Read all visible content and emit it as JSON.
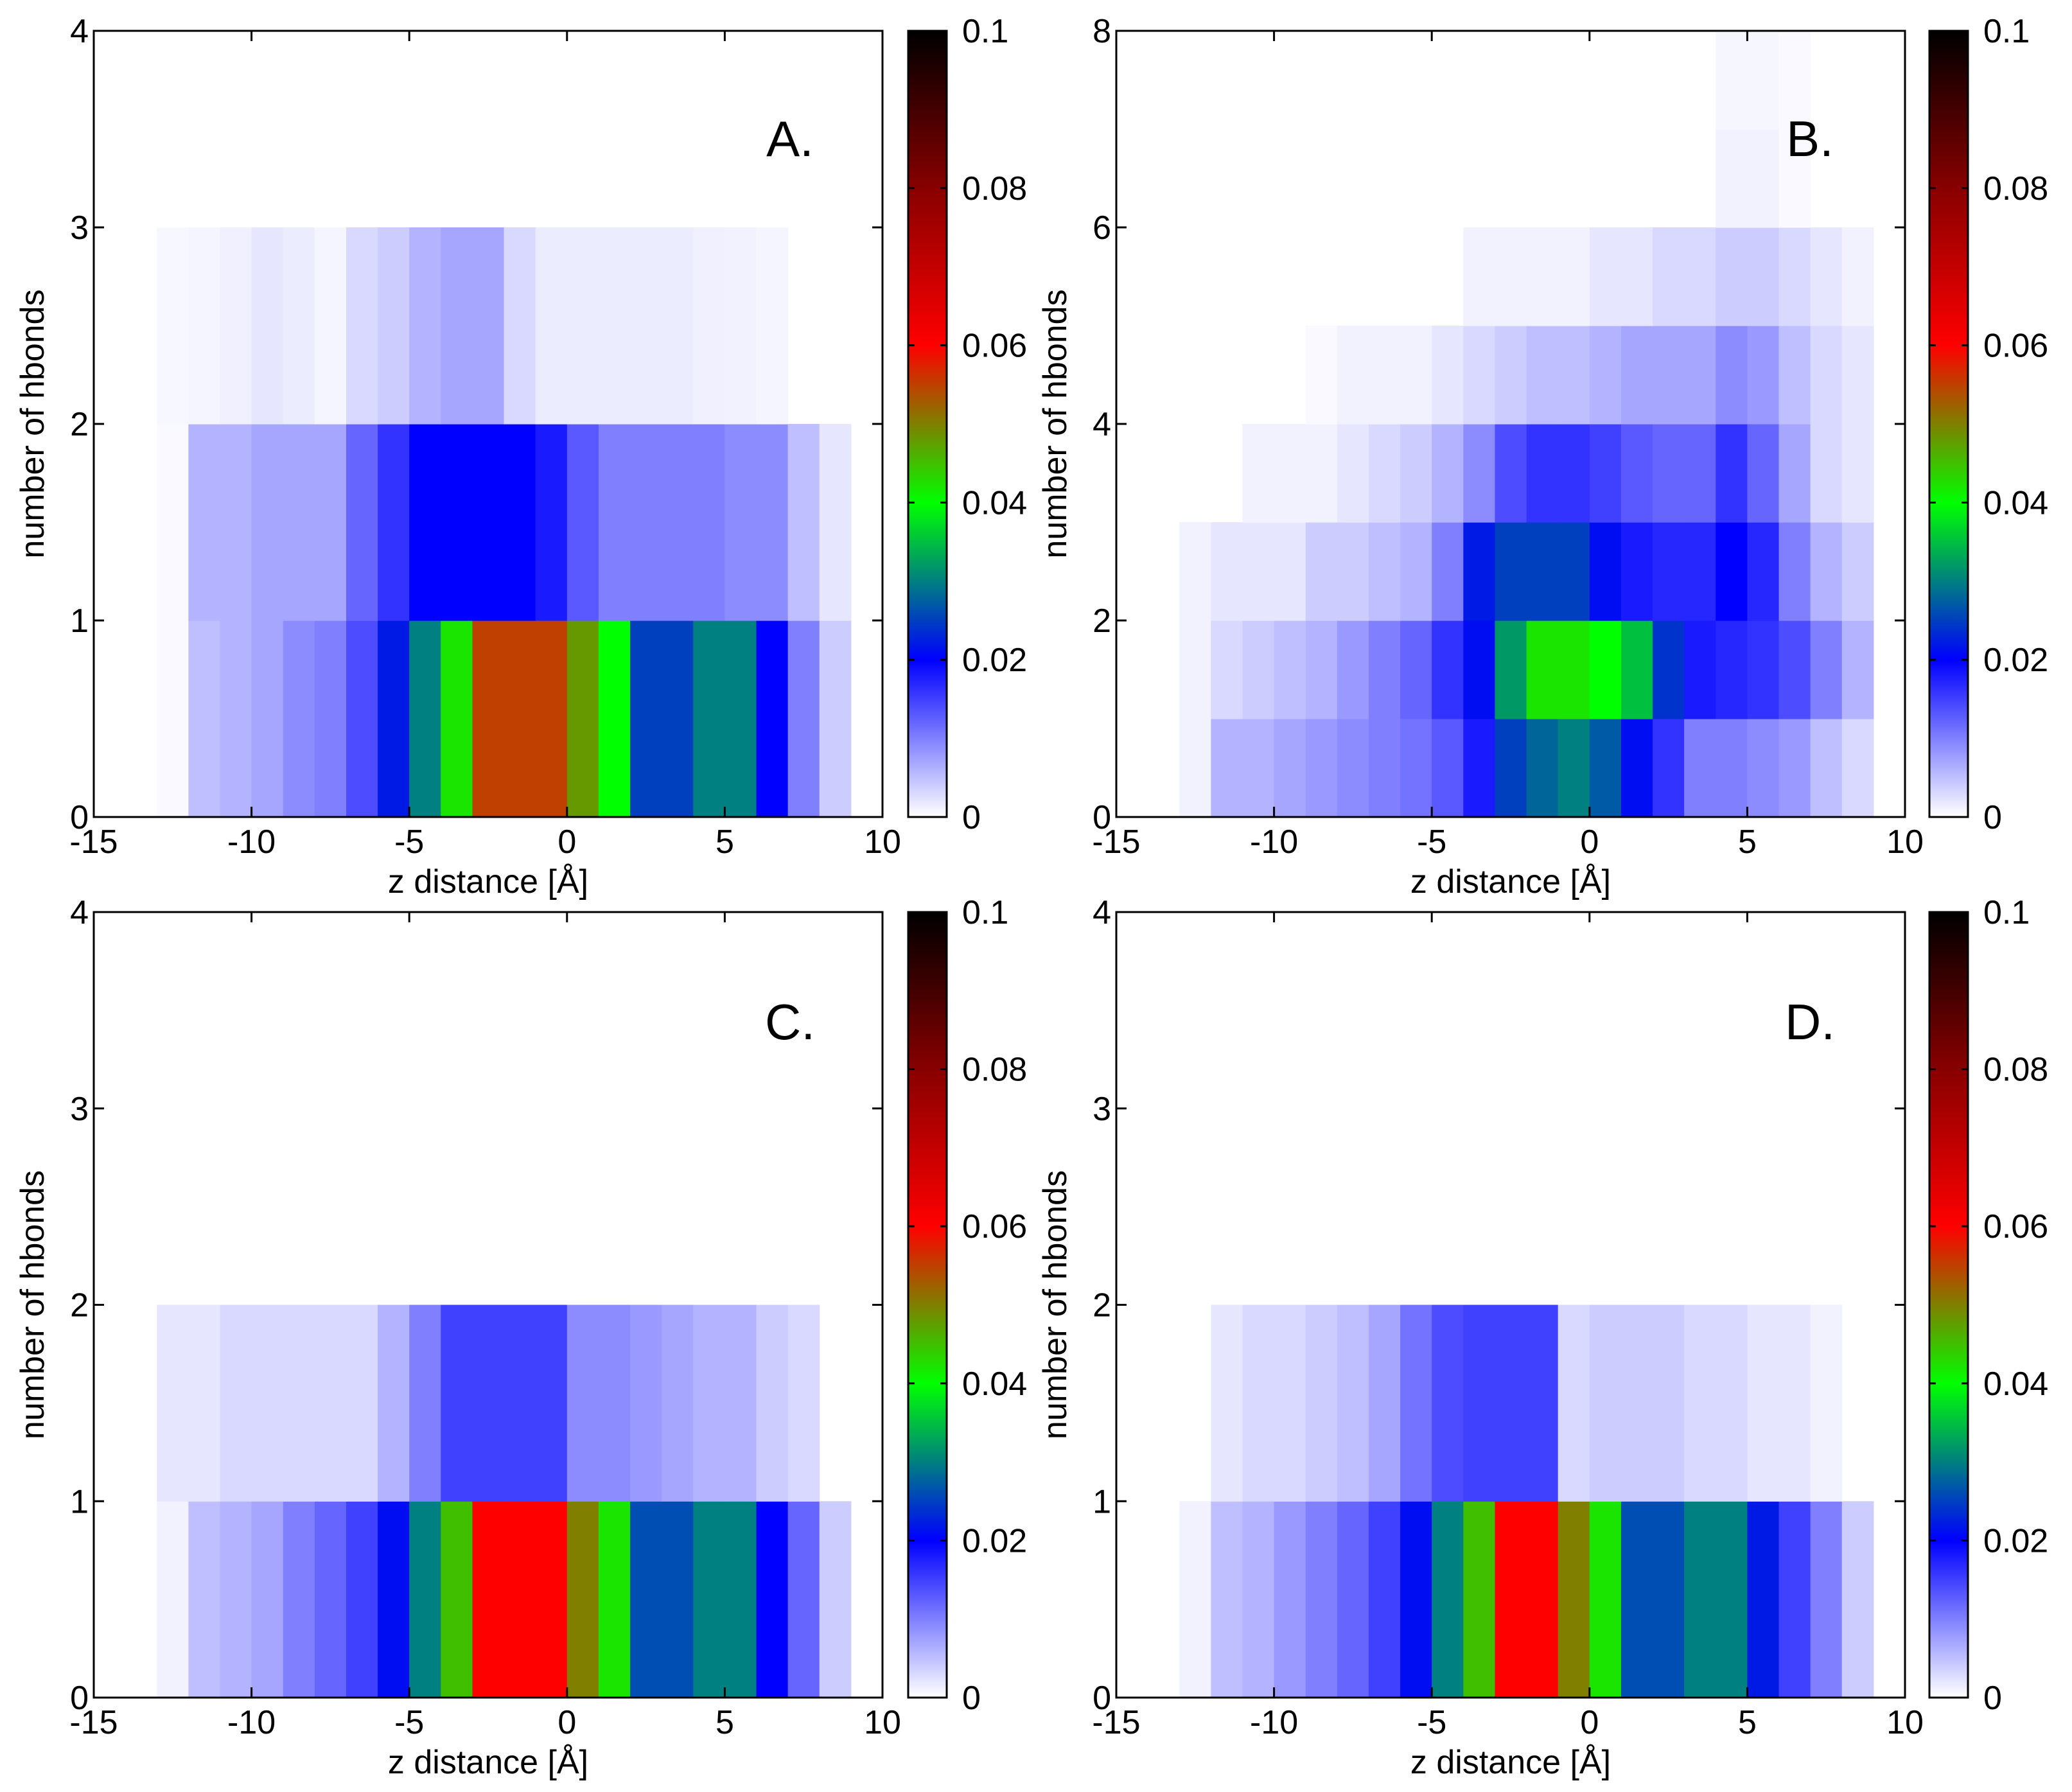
{
  "figure": {
    "colormap": {
      "stops": [
        {
          "v": 0.0,
          "color": "#ffffff"
        },
        {
          "v": 0.02,
          "color": "#0000ff"
        },
        {
          "v": 0.03,
          "color": "#008080"
        },
        {
          "v": 0.04,
          "color": "#00ff00"
        },
        {
          "v": 0.06,
          "color": "#ff0000"
        },
        {
          "v": 0.08,
          "color": "#880000"
        },
        {
          "v": 0.1,
          "color": "#000000"
        }
      ]
    },
    "colorbar": {
      "range": [
        0,
        0.1
      ],
      "ticks": [
        0,
        0.02,
        0.04,
        0.06,
        0.08,
        0.1
      ],
      "tick_labels": [
        "0",
        "0.02",
        "0.04",
        "0.06",
        "0.08",
        "0.1"
      ]
    }
  },
  "chart_data": [
    {
      "type": "heatmap",
      "panel_label": "A.",
      "xlabel": "z distance [Å]",
      "ylabel": "number of hbonds",
      "xlim": [
        -15,
        10
      ],
      "ylim": [
        0,
        4
      ],
      "xticks": [
        -15,
        -10,
        -5,
        0,
        5,
        10
      ],
      "xtick_labels": [
        "-15",
        "-10",
        "-5",
        "0",
        "5",
        "10"
      ],
      "yticks": [
        0,
        1,
        2,
        3,
        4
      ],
      "ytick_labels": [
        "0",
        "1",
        "2",
        "3",
        "4"
      ],
      "bin_width": 1,
      "bin_height": 1,
      "rows": [
        {
          "y0": 0,
          "x0": -15,
          "values": [
            0,
            0,
            0.0005,
            0.005,
            0.006,
            0.007,
            0.009,
            0.01,
            0.014,
            0.022,
            0.03,
            0.042,
            0.055,
            0.055,
            0.055,
            0.048,
            0.04,
            0.025,
            0.025,
            0.03,
            0.03,
            0.02,
            0.01,
            0.004
          ]
        },
        {
          "y0": 1,
          "x0": -15,
          "values": [
            0,
            0,
            0.0005,
            0.006,
            0.006,
            0.007,
            0.007,
            0.007,
            0.012,
            0.016,
            0.02,
            0.02,
            0.02,
            0.02,
            0.018,
            0.013,
            0.01,
            0.01,
            0.01,
            0.01,
            0.009,
            0.009,
            0.005,
            0.002
          ]
        },
        {
          "y0": 2,
          "x0": -15,
          "values": [
            0,
            0,
            0.0006,
            0.0008,
            0.0012,
            0.002,
            0.0015,
            0.0008,
            0.003,
            0.004,
            0.006,
            0.007,
            0.007,
            0.003,
            0.0015,
            0.0015,
            0.0015,
            0.0015,
            0.0015,
            0.0012,
            0.001,
            0.0008,
            0,
            0
          ]
        }
      ]
    },
    {
      "type": "heatmap",
      "panel_label": "B.",
      "xlabel": "z distance [Å]",
      "ylabel": "number of hbonds",
      "xlim": [
        -15,
        10
      ],
      "ylim": [
        0,
        8
      ],
      "xticks": [
        -15,
        -10,
        -5,
        0,
        5,
        10
      ],
      "xtick_labels": [
        "-15",
        "-10",
        "-5",
        "0",
        "5",
        "10"
      ],
      "yticks": [
        0,
        2,
        4,
        6,
        8
      ],
      "ytick_labels": [
        "0",
        "2",
        "4",
        "6",
        "8"
      ],
      "bin_width": 1,
      "bin_height": 1,
      "rows": [
        {
          "y0": 0,
          "x0": -13,
          "values": [
            0.001,
            0.006,
            0.006,
            0.007,
            0.008,
            0.009,
            0.01,
            0.011,
            0.013,
            0.018,
            0.025,
            0.028,
            0.03,
            0.027,
            0.021,
            0.016,
            0.01,
            0.01,
            0.009,
            0.008,
            0.005,
            0.003
          ]
        },
        {
          "y0": 1,
          "x0": -13,
          "values": [
            0.001,
            0.003,
            0.004,
            0.005,
            0.006,
            0.008,
            0.01,
            0.012,
            0.016,
            0.021,
            0.032,
            0.042,
            0.042,
            0.04,
            0.035,
            0.024,
            0.018,
            0.017,
            0.016,
            0.014,
            0.01,
            0.006
          ]
        },
        {
          "y0": 2,
          "x0": -13,
          "values": [
            0.001,
            0.002,
            0.002,
            0.002,
            0.004,
            0.004,
            0.005,
            0.006,
            0.01,
            0.022,
            0.025,
            0.025,
            0.025,
            0.021,
            0.018,
            0.017,
            0.017,
            0.02,
            0.017,
            0.01,
            0.006,
            0.004
          ]
        },
        {
          "y0": 3,
          "x0": -13,
          "values": [
            0,
            0,
            0.001,
            0.001,
            0.001,
            0.002,
            0.003,
            0.004,
            0.006,
            0.009,
            0.014,
            0.016,
            0.016,
            0.015,
            0.013,
            0.012,
            0.012,
            0.016,
            0.012,
            0.007,
            0.003,
            0.002
          ]
        },
        {
          "y0": 4,
          "x0": -13,
          "values": [
            0,
            0,
            0,
            0,
            0.0005,
            0.001,
            0.001,
            0.001,
            0.002,
            0.003,
            0.004,
            0.005,
            0.005,
            0.006,
            0.007,
            0.007,
            0.007,
            0.009,
            0.008,
            0.005,
            0.003,
            0.002
          ]
        },
        {
          "y0": 5,
          "x0": -13,
          "values": [
            0,
            0,
            0,
            0,
            0,
            0,
            0,
            0,
            0,
            0.001,
            0.001,
            0.001,
            0.001,
            0.002,
            0.002,
            0.003,
            0.003,
            0.004,
            0.004,
            0.003,
            0.002,
            0.001
          ]
        },
        {
          "y0": 6,
          "x0": -13,
          "values": [
            0,
            0,
            0,
            0,
            0,
            0,
            0,
            0,
            0,
            0,
            0,
            0,
            0,
            0,
            0,
            0,
            0,
            0.001,
            0.001,
            0.0005,
            0,
            0
          ]
        },
        {
          "y0": 7,
          "x0": -13,
          "values": [
            0,
            0,
            0,
            0,
            0,
            0,
            0,
            0,
            0,
            0,
            0,
            0,
            0,
            0,
            0,
            0,
            0,
            0.0007,
            0.0007,
            0.0005,
            0,
            0
          ]
        }
      ]
    },
    {
      "type": "heatmap",
      "panel_label": "C.",
      "xlabel": "z distance [Å]",
      "ylabel": "number of hbonds",
      "xlim": [
        -15,
        10
      ],
      "ylim": [
        0,
        4
      ],
      "xticks": [
        -15,
        -10,
        -5,
        0,
        5,
        10
      ],
      "xtick_labels": [
        "-15",
        "-10",
        "-5",
        "0",
        "5",
        "10"
      ],
      "yticks": [
        0,
        1,
        2,
        3,
        4
      ],
      "ytick_labels": [
        "0",
        "1",
        "2",
        "3",
        "4"
      ],
      "bin_width": 1,
      "bin_height": 1,
      "rows": [
        {
          "y0": 0,
          "x0": -15,
          "values": [
            0,
            0,
            0.001,
            0.005,
            0.006,
            0.007,
            0.01,
            0.012,
            0.015,
            0.021,
            0.03,
            0.045,
            0.06,
            0.06,
            0.06,
            0.05,
            0.042,
            0.026,
            0.026,
            0.03,
            0.03,
            0.02,
            0.012,
            0.004
          ]
        },
        {
          "y0": 1,
          "x0": -15,
          "values": [
            0,
            0,
            0.002,
            0.002,
            0.003,
            0.003,
            0.003,
            0.003,
            0.003,
            0.006,
            0.01,
            0.015,
            0.015,
            0.015,
            0.015,
            0.009,
            0.009,
            0.008,
            0.007,
            0.006,
            0.006,
            0.004,
            0.003,
            0
          ]
        }
      ]
    },
    {
      "type": "heatmap",
      "panel_label": "D.",
      "xlabel": "z distance [Å]",
      "ylabel": "number of hbonds",
      "xlim": [
        -15,
        10
      ],
      "ylim": [
        0,
        4
      ],
      "xticks": [
        -15,
        -10,
        -5,
        0,
        5,
        10
      ],
      "xtick_labels": [
        "-15",
        "-10",
        "-5",
        "0",
        "5",
        "10"
      ],
      "yticks": [
        0,
        1,
        2,
        3,
        4
      ],
      "ytick_labels": [
        "0",
        "1",
        "2",
        "3",
        "4"
      ],
      "bin_width": 1,
      "bin_height": 1,
      "rows": [
        {
          "y0": 0,
          "x0": -13,
          "values": [
            0.001,
            0.005,
            0.006,
            0.008,
            0.01,
            0.012,
            0.015,
            0.021,
            0.03,
            0.045,
            0.06,
            0.06,
            0.05,
            0.042,
            0.026,
            0.026,
            0.03,
            0.03,
            0.022,
            0.015,
            0.01,
            0.004
          ]
        },
        {
          "y0": 1,
          "x0": -13,
          "values": [
            0,
            0.002,
            0.003,
            0.003,
            0.004,
            0.005,
            0.007,
            0.011,
            0.014,
            0.015,
            0.015,
            0.015,
            0.003,
            0.004,
            0.004,
            0.004,
            0.003,
            0.003,
            0.002,
            0.002,
            0.001,
            0
          ]
        }
      ]
    }
  ]
}
